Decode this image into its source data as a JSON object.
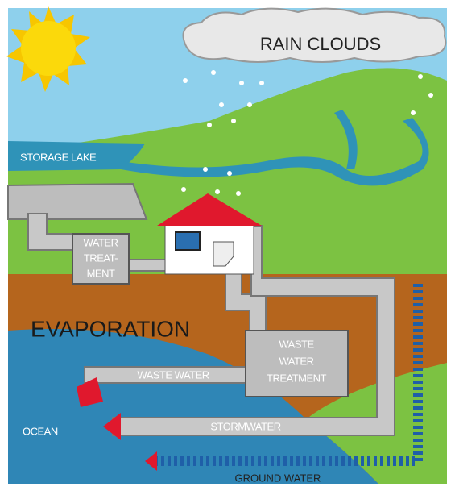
{
  "labels": {
    "rain_clouds": "RAIN CLOUDS",
    "storage_lake": "STORAGE LAKE",
    "water_treatment": [
      "WATER",
      "TREAT-",
      "MENT"
    ],
    "evaporation": "EVAPORATION",
    "waste_water_treatment": [
      "WASTE",
      "WATER",
      "TREATMENT"
    ],
    "waste_water": "WASTE WATER",
    "ocean": "OCEAN",
    "stormwater": "STORMWATER",
    "ground_water": "GROUND WATER"
  }
}
